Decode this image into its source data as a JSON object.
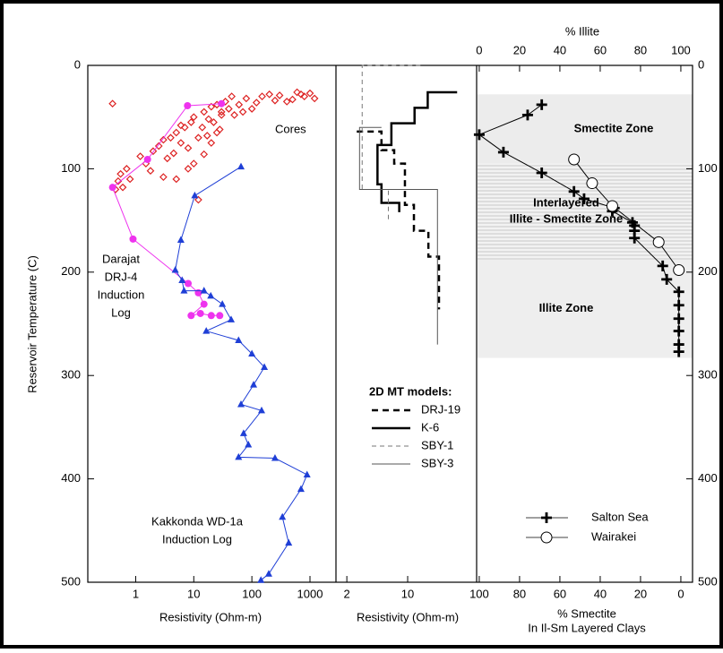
{
  "chart_data": [
    {
      "type": "scatter",
      "xlabel": "Resistivity  (Ohm-m)",
      "ylabel": "Reservoir Temperature (C)",
      "xscale": "log",
      "xlim": [
        0.15,
        2800
      ],
      "xticks": [
        1,
        10,
        100,
        1000
      ],
      "ylim": [
        0,
        500
      ],
      "yticks": [
        0,
        100,
        200,
        300,
        400,
        500
      ],
      "annotations": [
        {
          "text": [
            "Cores"
          ]
        },
        {
          "text": [
            "Darajat",
            "DRJ-4",
            "Induction",
            "Log"
          ]
        },
        {
          "text": [
            "Kakkonda WD-1a",
            "Induction Log"
          ]
        }
      ],
      "series": [
        {
          "color": "#dd2222",
          "marker": "diamond",
          "line": false,
          "x": [
            0.4,
            0.45,
            0.5,
            0.55,
            0.6,
            0.7,
            0.8,
            1.2,
            1.5,
            1.8,
            2,
            2.5,
            3,
            3.5,
            4,
            4.5,
            5,
            6,
            7,
            8,
            9,
            10,
            12,
            14,
            15,
            17,
            20,
            22,
            25,
            28,
            30,
            35,
            40,
            45,
            50,
            60,
            70,
            80,
            100,
            120,
            150,
            200,
            250,
            300,
            400,
            500,
            600,
            700,
            800,
            1000,
            1200,
            5,
            8,
            10,
            15,
            20,
            3,
            6,
            12,
            25,
            30,
            18
          ],
          "values": [
            37,
            120,
            112,
            105,
            118,
            100,
            110,
            88,
            95,
            102,
            83,
            78,
            72,
            90,
            70,
            85,
            65,
            75,
            60,
            80,
            55,
            50,
            70,
            60,
            45,
            68,
            40,
            55,
            38,
            62,
            48,
            35,
            42,
            30,
            48,
            38,
            45,
            32,
            42,
            36,
            30,
            28,
            34,
            29,
            35,
            33,
            26,
            28,
            30,
            27,
            32,
            110,
            100,
            95,
            86,
            75,
            108,
            58,
            130,
            65,
            45,
            52
          ]
        },
        {
          "color": "#ee33ee",
          "marker": "circle",
          "line": true,
          "x": [
            30,
            7.8,
            1.6,
            0.4,
            0.9,
            8,
            12,
            15,
            9,
            13,
            20,
            28
          ],
          "values": [
            37,
            39,
            91,
            118,
            168,
            211,
            220,
            231,
            242,
            240,
            242,
            242
          ]
        },
        {
          "color": "#1f3fd6",
          "marker": "triangle",
          "line": true,
          "x": [
            65,
            10.4,
            6,
            4.8,
            6.3,
            6.8,
            15,
            19.6,
            31,
            44,
            16.4,
            59,
            100,
            164,
            107,
            65,
            147,
            72,
            87,
            59,
            250,
            890,
            700,
            335,
            430,
            195,
            143
          ],
          "values": [
            98,
            126,
            169,
            198,
            208,
            218,
            218,
            223,
            231,
            246,
            257,
            266,
            279,
            292,
            309,
            328,
            334,
            356,
            367,
            379,
            380,
            396,
            410,
            437,
            462,
            492,
            498
          ]
        }
      ]
    },
    {
      "type": "line",
      "xlabel": "Resistivity (Ohm-m)",
      "xscale": "log",
      "xlim": [
        1.5,
        62
      ],
      "xticks": [
        2,
        10
      ],
      "ylim": [
        0,
        500
      ],
      "legend_title": "2D MT models:",
      "series": [
        {
          "name": "DRJ-19",
          "color": "#000000",
          "width": 2.5,
          "dash": "7,5",
          "x": [
            2.6,
            5,
            5,
            7,
            7,
            9.3,
            9.3,
            11.8,
            11.8,
            17.3,
            17.3,
            22.9,
            22.9
          ],
          "values": [
            64,
            64,
            82,
            82,
            95,
            95,
            135,
            135,
            160,
            160,
            185,
            185,
            236
          ]
        },
        {
          "name": "K-6",
          "color": "#000000",
          "width": 2.5,
          "dash": "",
          "x": [
            37,
            17,
            17,
            12,
            12,
            6.5,
            6.5,
            4.5,
            4.5,
            5,
            5,
            8,
            8
          ],
          "values": [
            26,
            26,
            41,
            41,
            56,
            56,
            77,
            77,
            115,
            115,
            133,
            133,
            142
          ]
        },
        {
          "name": "SBY-1",
          "color": "#777777",
          "width": 1,
          "dash": "5,4",
          "x": [
            14,
            3,
            3,
            6,
            6
          ],
          "values": [
            0,
            0,
            120,
            120,
            150
          ]
        },
        {
          "name": "SBY-3",
          "color": "#555555",
          "width": 1,
          "dash": "",
          "x": [
            5,
            2.8,
            2.8,
            22,
            22
          ],
          "values": [
            60,
            60,
            120,
            120,
            270
          ]
        }
      ]
    },
    {
      "type": "scatter",
      "xlabel": [
        "% Smectite",
        "In Il-Sm Layered Clays"
      ],
      "x2label": "% Illite",
      "xlim": [
        101.3,
        -5.8
      ],
      "xticks": [
        100,
        80,
        60,
        40,
        20,
        0
      ],
      "x2lim": [
        -1.3,
        105.8
      ],
      "x2ticks": [
        0,
        20,
        40,
        60,
        80,
        100
      ],
      "ylim": [
        0,
        500
      ],
      "yticks": [
        0,
        100,
        200,
        300,
        400,
        500
      ],
      "zones": [
        {
          "label": [
            "Smectite Zone"
          ],
          "range": [
            28,
            95
          ]
        },
        {
          "label": [
            "Interlayered",
            "Illite - Smectite Zone"
          ],
          "range": [
            95,
            188
          ]
        },
        {
          "label": [
            "Illite Zone"
          ],
          "range": [
            188,
            283
          ]
        }
      ],
      "series": [
        {
          "name": "Salton Sea",
          "color": "#000000",
          "marker": "plus",
          "line": true,
          "x": [
            69,
            76,
            100,
            88,
            69,
            53,
            48,
            33,
            34,
            24,
            23,
            23,
            23,
            9,
            7,
            1,
            1,
            1,
            1,
            1,
            1
          ],
          "values": [
            38,
            48,
            67,
            84,
            104,
            122,
            129,
            138,
            141,
            152,
            155,
            160,
            167,
            194,
            207,
            219,
            232,
            245,
            257,
            270,
            277
          ]
        },
        {
          "name": "Wairakei",
          "color": "#000000",
          "marker": "ocircle",
          "line": true,
          "x": [
            53,
            44,
            34,
            11,
            1
          ],
          "values": [
            91,
            114,
            136,
            171,
            198
          ]
        }
      ]
    }
  ]
}
